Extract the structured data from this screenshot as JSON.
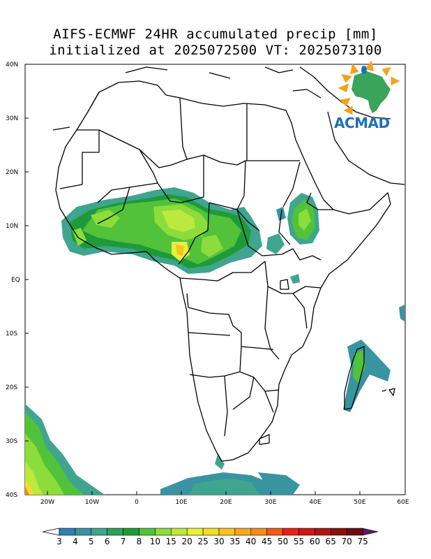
{
  "title": {
    "line1": "AIFS-ECMWF 24HR accumulated precip [mm]",
    "line2": "initialized at 2025072500 VT: 2025073100"
  },
  "axes": {
    "lat_labels": [
      "40N",
      "30N",
      "20N",
      "10N",
      "EQ",
      "10S",
      "20S",
      "30S",
      "40S"
    ],
    "lon_labels": [
      "20W",
      "10W",
      "0",
      "10E",
      "20E",
      "30E",
      "40E",
      "50E",
      "60E"
    ]
  },
  "logo": {
    "text": "ACMAD",
    "color": "#1f6fb5"
  },
  "colorbar": {
    "levels": [
      "3",
      "4",
      "5",
      "6",
      "7",
      "8",
      "10",
      "15",
      "20",
      "25",
      "30",
      "35",
      "40",
      "45",
      "50",
      "55",
      "60",
      "65",
      "70",
      "75"
    ],
    "colors": [
      "#2f7fb0",
      "#3a93a0",
      "#3fa58e",
      "#2ea05a",
      "#1f9a3a",
      "#52c23a",
      "#8cdc3c",
      "#bde83e",
      "#e8ef3c",
      "#f4dc2c",
      "#f7c223",
      "#f4a81e",
      "#f28c1c",
      "#ef5a17",
      "#e6211b",
      "#cc1818",
      "#ae1414",
      "#8a1010",
      "#6c0c12",
      "#5a1a6a"
    ]
  }
}
